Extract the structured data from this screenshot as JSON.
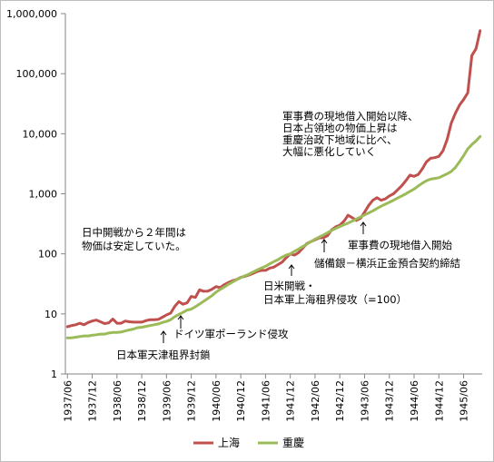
{
  "chart_data": {
    "type": "line",
    "y_scale": "log",
    "ylim": [
      1,
      1000000
    ],
    "grid": false,
    "legend_position": "bottom",
    "y_ticks": [
      "1,000,000",
      "100,000",
      "10,000",
      "1,000",
      "100",
      "10",
      "1"
    ],
    "x_ticks": [
      "1937/06",
      "1937/12",
      "1938/06",
      "1938/12",
      "1939/06",
      "1939/12",
      "1940/06",
      "1940/12",
      "1941/06",
      "1941/12",
      "1942/06",
      "1942/12",
      "1943/06",
      "1943/12",
      "1944/06",
      "1944/12",
      "1945/06"
    ],
    "colors": {
      "上海": "#c0504d",
      "重慶": "#9bbb59"
    },
    "series": [
      {
        "name": "上海",
        "points": [
          [
            "1937/06",
            6.1
          ],
          [
            "1937/07",
            6.4
          ],
          [
            "1937/08",
            6.6
          ],
          [
            "1937/09",
            7.0
          ],
          [
            "1937/10",
            6.6
          ],
          [
            "1937/11",
            7.2
          ],
          [
            "1937/12",
            7.6
          ],
          [
            "1938/01",
            7.9
          ],
          [
            "1938/02",
            7.4
          ],
          [
            "1938/03",
            6.9
          ],
          [
            "1938/04",
            7.1
          ],
          [
            "1938/05",
            8.2
          ],
          [
            "1938/06",
            7.0
          ],
          [
            "1938/07",
            7.0
          ],
          [
            "1938/08",
            7.6
          ],
          [
            "1938/09",
            7.4
          ],
          [
            "1938/10",
            7.3
          ],
          [
            "1938/11",
            7.3
          ],
          [
            "1938/12",
            7.3
          ],
          [
            "1939/01",
            7.7
          ],
          [
            "1939/02",
            8.0
          ],
          [
            "1939/03",
            8.0
          ],
          [
            "1939/04",
            8.1
          ],
          [
            "1939/05",
            8.8
          ],
          [
            "1939/06",
            9.6
          ],
          [
            "1939/07",
            10.3
          ],
          [
            "1939/08",
            13.3
          ],
          [
            "1939/09",
            16.0
          ],
          [
            "1939/10",
            14.5
          ],
          [
            "1939/11",
            15.3
          ],
          [
            "1939/12",
            19.5
          ],
          [
            "1940/01",
            18.8
          ],
          [
            "1940/02",
            25.2
          ],
          [
            "1940/03",
            23.8
          ],
          [
            "1940/04",
            24.0
          ],
          [
            "1940/05",
            25.7
          ],
          [
            "1940/06",
            28.5
          ],
          [
            "1940/07",
            27.3
          ],
          [
            "1940/08",
            30.7
          ],
          [
            "1940/09",
            33.3
          ],
          [
            "1940/10",
            35.7
          ],
          [
            "1940/11",
            37.5
          ],
          [
            "1940/12",
            40.5
          ],
          [
            "1941/01",
            42.1
          ],
          [
            "1941/02",
            44.5
          ],
          [
            "1941/03",
            47.3
          ],
          [
            "1941/04",
            50.8
          ],
          [
            "1941/05",
            53.0
          ],
          [
            "1941/06",
            53.0
          ],
          [
            "1941/07",
            57.9
          ],
          [
            "1941/08",
            60.1
          ],
          [
            "1941/09",
            66.0
          ],
          [
            "1941/10",
            72.8
          ],
          [
            "1941/11",
            86.0
          ],
          [
            "1941/12",
            100.0
          ],
          [
            "1942/01",
            95.0
          ],
          [
            "1942/02",
            105.0
          ],
          [
            "1942/03",
            124.0
          ],
          [
            "1942/04",
            148.0
          ],
          [
            "1942/05",
            160.0
          ],
          [
            "1942/06",
            171.0
          ],
          [
            "1942/07",
            185.0
          ],
          [
            "1942/08",
            185.0
          ],
          [
            "1942/09",
            200.0
          ],
          [
            "1942/10",
            250.0
          ],
          [
            "1942/11",
            282.0
          ],
          [
            "1942/12",
            300.0
          ],
          [
            "1943/01",
            350.0
          ],
          [
            "1943/02",
            440.0
          ],
          [
            "1943/03",
            400.0
          ],
          [
            "1943/04",
            360.0
          ],
          [
            "1943/05",
            390.0
          ],
          [
            "1943/06",
            495.0
          ],
          [
            "1943/07",
            640.0
          ],
          [
            "1943/08",
            780.0
          ],
          [
            "1943/09",
            860.0
          ],
          [
            "1943/10",
            780.0
          ],
          [
            "1943/11",
            820.0
          ],
          [
            "1943/12",
            920.0
          ],
          [
            "1944/01",
            1000.0
          ],
          [
            "1944/02",
            1160.0
          ],
          [
            "1944/03",
            1360.0
          ],
          [
            "1944/04",
            1650.0
          ],
          [
            "1944/05",
            2050.0
          ],
          [
            "1944/06",
            1950.0
          ],
          [
            "1944/07",
            2100.0
          ],
          [
            "1944/08",
            2600.0
          ],
          [
            "1944/09",
            3400.0
          ],
          [
            "1944/10",
            3900.0
          ],
          [
            "1944/11",
            4000.0
          ],
          [
            "1944/12",
            4200.0
          ],
          [
            "1945/01",
            5200.0
          ],
          [
            "1945/02",
            8000.0
          ],
          [
            "1945/03",
            15000.0
          ],
          [
            "1945/04",
            22000.0
          ],
          [
            "1945/05",
            30000.0
          ],
          [
            "1945/06",
            37000.0
          ],
          [
            "1945/07",
            48000.0
          ],
          [
            "1945/08",
            200000.0
          ],
          [
            "1945/09",
            260000.0
          ],
          [
            "1945/10",
            520000.0
          ]
        ]
      },
      {
        "name": "重慶",
        "points": [
          [
            "1937/06",
            4.0
          ],
          [
            "1937/07",
            4.0
          ],
          [
            "1937/08",
            4.1
          ],
          [
            "1937/09",
            4.2
          ],
          [
            "1937/10",
            4.3
          ],
          [
            "1937/11",
            4.3
          ],
          [
            "1937/12",
            4.4
          ],
          [
            "1938/01",
            4.5
          ],
          [
            "1938/02",
            4.6
          ],
          [
            "1938/03",
            4.6
          ],
          [
            "1938/04",
            4.8
          ],
          [
            "1938/05",
            4.9
          ],
          [
            "1938/06",
            4.9
          ],
          [
            "1938/07",
            5.0
          ],
          [
            "1938/08",
            5.2
          ],
          [
            "1938/09",
            5.4
          ],
          [
            "1938/10",
            5.6
          ],
          [
            "1938/11",
            5.9
          ],
          [
            "1938/12",
            6.0
          ],
          [
            "1939/01",
            6.2
          ],
          [
            "1939/02",
            6.4
          ],
          [
            "1939/03",
            6.6
          ],
          [
            "1939/04",
            6.8
          ],
          [
            "1939/05",
            7.2
          ],
          [
            "1939/06",
            7.5
          ],
          [
            "1939/07",
            8.0
          ],
          [
            "1939/08",
            9.0
          ],
          [
            "1939/09",
            9.8
          ],
          [
            "1939/10",
            10.6
          ],
          [
            "1939/11",
            11.6
          ],
          [
            "1939/12",
            12.0
          ],
          [
            "1940/01",
            13.2
          ],
          [
            "1940/02",
            14.6
          ],
          [
            "1940/03",
            16.2
          ],
          [
            "1940/04",
            18.0
          ],
          [
            "1940/05",
            20.1
          ],
          [
            "1940/06",
            23.0
          ],
          [
            "1940/07",
            25.5
          ],
          [
            "1940/08",
            28.0
          ],
          [
            "1940/09",
            31.0
          ],
          [
            "1940/10",
            34.0
          ],
          [
            "1940/11",
            37.0
          ],
          [
            "1940/12",
            40.0
          ],
          [
            "1941/01",
            43.0
          ],
          [
            "1941/02",
            46.0
          ],
          [
            "1941/03",
            50.0
          ],
          [
            "1941/04",
            54.0
          ],
          [
            "1941/05",
            58.0
          ],
          [
            "1941/06",
            62.0
          ],
          [
            "1941/07",
            68.0
          ],
          [
            "1941/08",
            74.0
          ],
          [
            "1941/09",
            80.0
          ],
          [
            "1941/10",
            88.0
          ],
          [
            "1941/11",
            95.0
          ],
          [
            "1941/12",
            100.0
          ],
          [
            "1942/01",
            110.0
          ],
          [
            "1942/02",
            120.0
          ],
          [
            "1942/03",
            132.0
          ],
          [
            "1942/04",
            145.0
          ],
          [
            "1942/05",
            160.0
          ],
          [
            "1942/06",
            175.0
          ],
          [
            "1942/07",
            190.0
          ],
          [
            "1942/08",
            205.0
          ],
          [
            "1942/09",
            225.0
          ],
          [
            "1942/10",
            245.0
          ],
          [
            "1942/11",
            265.0
          ],
          [
            "1942/12",
            285.0
          ],
          [
            "1943/01",
            305.0
          ],
          [
            "1943/02",
            325.0
          ],
          [
            "1943/03",
            350.0
          ],
          [
            "1943/04",
            380.0
          ],
          [
            "1943/05",
            410.0
          ],
          [
            "1943/06",
            445.0
          ],
          [
            "1943/07",
            480.0
          ],
          [
            "1943/08",
            520.0
          ],
          [
            "1943/09",
            570.0
          ],
          [
            "1943/10",
            620.0
          ],
          [
            "1943/11",
            670.0
          ],
          [
            "1943/12",
            720.0
          ],
          [
            "1944/01",
            780.0
          ],
          [
            "1944/02",
            850.0
          ],
          [
            "1944/03",
            920.0
          ],
          [
            "1944/04",
            1000.0
          ],
          [
            "1944/05",
            1100.0
          ],
          [
            "1944/06",
            1200.0
          ],
          [
            "1944/07",
            1350.0
          ],
          [
            "1944/08",
            1500.0
          ],
          [
            "1944/09",
            1650.0
          ],
          [
            "1944/10",
            1750.0
          ],
          [
            "1944/11",
            1800.0
          ],
          [
            "1944/12",
            1850.0
          ],
          [
            "1945/01",
            2000.0
          ],
          [
            "1945/02",
            2150.0
          ],
          [
            "1945/03",
            2350.0
          ],
          [
            "1945/04",
            2750.0
          ],
          [
            "1945/05",
            3400.0
          ],
          [
            "1945/06",
            4300.0
          ],
          [
            "1945/07",
            5600.0
          ],
          [
            "1945/08",
            6600.0
          ],
          [
            "1945/09",
            7600.0
          ],
          [
            "1945/10",
            9000.0
          ]
        ]
      }
    ],
    "annotations": [
      {
        "id": "stable",
        "lines": [
          "日中開戦から２年間は",
          "物価は安定していた。"
        ],
        "arrow": false
      },
      {
        "id": "tianjin",
        "lines": [
          "日本軍天津租界封鎖"
        ],
        "arrow": true,
        "date": "1939/07"
      },
      {
        "id": "poland",
        "lines": [
          "ドイツ軍ポーランド侵攻"
        ],
        "arrow": true,
        "date": "1939/09"
      },
      {
        "id": "pacific",
        "lines": [
          "日米開戦・",
          "日本軍上海租界侵攻（=100）"
        ],
        "arrow": true,
        "date": "1941/12"
      },
      {
        "id": "yokohama",
        "lines": [
          "儲備銀－横浜正金預合契約締結"
        ],
        "arrow": true,
        "date": "1942/06"
      },
      {
        "id": "local_start",
        "lines": [
          "軍事費の現地借入開始"
        ],
        "arrow": true,
        "date": "1943/04"
      },
      {
        "id": "after_local",
        "lines": [
          "軍事費の現地借入開始以降、",
          "日本占領地の物価上昇は",
          "重慶治政下地域に比べ、",
          "大幅に悪化していく"
        ],
        "arrow": false
      }
    ]
  }
}
